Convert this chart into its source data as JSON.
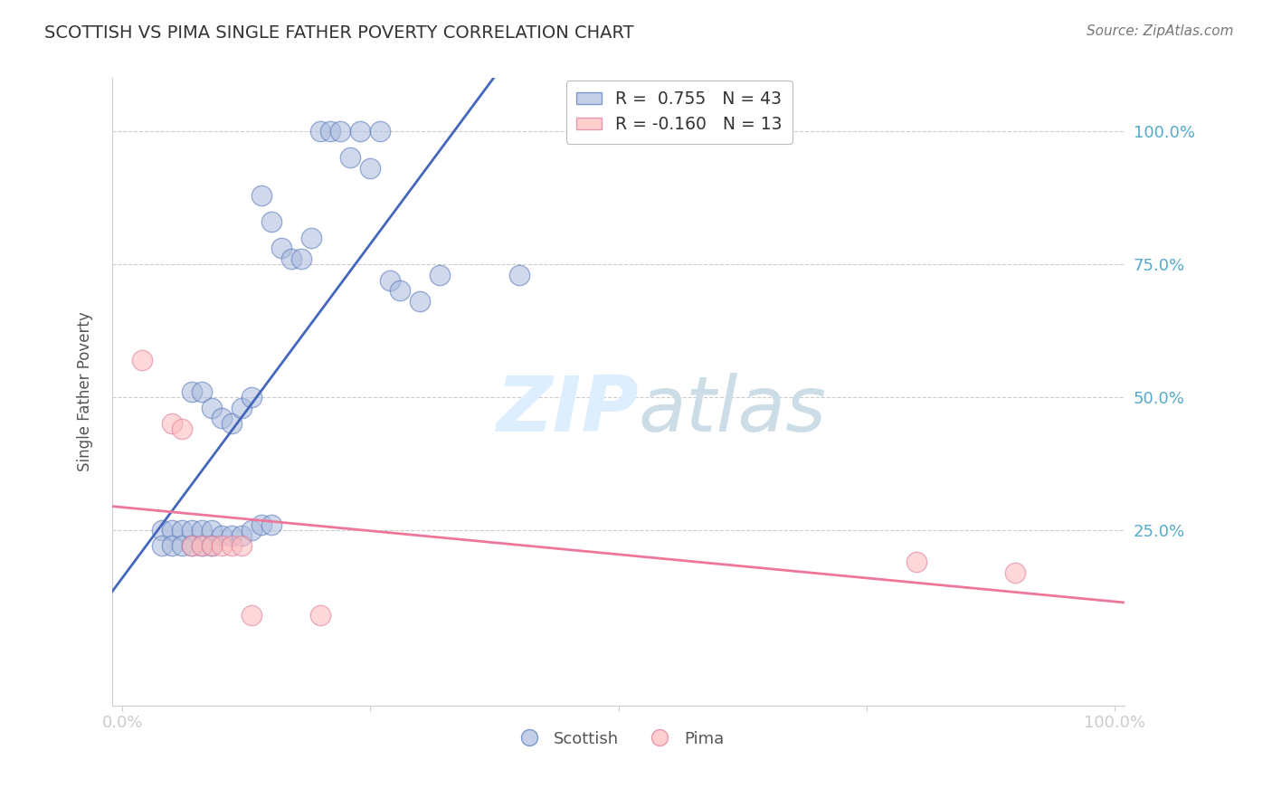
{
  "title": "SCOTTISH VS PIMA SINGLE FATHER POVERTY CORRELATION CHART",
  "source": "Source: ZipAtlas.com",
  "ylabel": "Single Father Poverty",
  "xlim": [
    -0.01,
    1.01
  ],
  "ylim": [
    -0.08,
    1.1
  ],
  "blue_R": 0.755,
  "blue_N": 43,
  "pink_R": -0.16,
  "pink_N": 13,
  "blue_facecolor": "#AABBDD",
  "blue_edgecolor": "#5577BB",
  "pink_facecolor": "#FFBBBB",
  "pink_edgecolor": "#DD7799",
  "blue_line_color": "#4466BB",
  "pink_line_color": "#EE7799",
  "bg_color": "#FFFFFF",
  "grid_color": "#CCCCCC",
  "title_color": "#333333",
  "source_color": "#777777",
  "axis_tick_color": "#55AACC",
  "ylabel_color": "#555555",
  "blue_x": [
    0.2,
    0.21,
    0.22,
    0.23,
    0.24,
    0.25,
    0.26,
    0.14,
    0.15,
    0.16,
    0.17,
    0.18,
    0.19,
    0.27,
    0.28,
    0.3,
    0.32,
    0.07,
    0.08,
    0.09,
    0.1,
    0.11,
    0.12,
    0.13,
    0.04,
    0.05,
    0.06,
    0.07,
    0.08,
    0.09,
    0.1,
    0.11,
    0.12,
    0.13,
    0.14,
    0.15,
    0.04,
    0.05,
    0.06,
    0.07,
    0.08,
    0.09,
    0.4
  ],
  "blue_y": [
    1.0,
    1.0,
    1.0,
    0.95,
    1.0,
    0.93,
    1.0,
    0.88,
    0.83,
    0.78,
    0.76,
    0.76,
    0.8,
    0.72,
    0.7,
    0.68,
    0.73,
    0.51,
    0.51,
    0.48,
    0.46,
    0.45,
    0.48,
    0.5,
    0.25,
    0.25,
    0.25,
    0.25,
    0.25,
    0.25,
    0.24,
    0.24,
    0.24,
    0.25,
    0.26,
    0.26,
    0.22,
    0.22,
    0.22,
    0.22,
    0.22,
    0.22,
    0.73
  ],
  "pink_x": [
    0.02,
    0.05,
    0.06,
    0.07,
    0.08,
    0.09,
    0.1,
    0.11,
    0.12,
    0.8,
    0.9,
    0.13,
    0.2
  ],
  "pink_y": [
    0.57,
    0.45,
    0.44,
    0.22,
    0.22,
    0.22,
    0.22,
    0.22,
    0.22,
    0.19,
    0.17,
    0.09,
    0.09
  ],
  "legend_blue_text": "R =  0.755   N = 43",
  "legend_pink_text": "R = -0.160   N = 13",
  "bottom_legend": [
    "Scottish",
    "Pima"
  ]
}
